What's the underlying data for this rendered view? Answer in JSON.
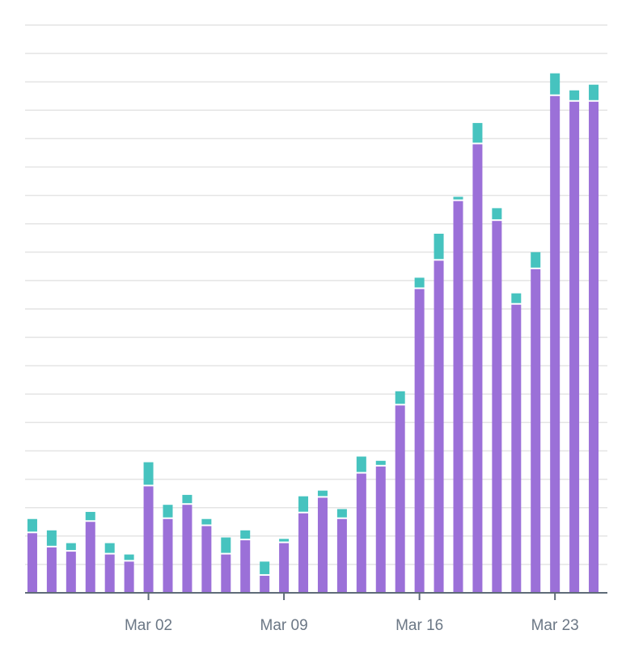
{
  "chart_data": {
    "type": "stacked_bar",
    "categories": [
      null,
      null,
      null,
      null,
      null,
      null,
      "Mar 02",
      null,
      null,
      null,
      null,
      null,
      null,
      "Mar 09",
      null,
      null,
      null,
      null,
      null,
      null,
      "Mar 16",
      null,
      null,
      null,
      null,
      null,
      null,
      "Mar 23",
      null,
      null
    ],
    "series": [
      {
        "color": "#9b70d8",
        "values": [
          2.1,
          1.6,
          1.45,
          2.5,
          1.35,
          1.1,
          3.75,
          2.6,
          3.1,
          2.35,
          1.35,
          1.85,
          0.6,
          1.75,
          2.8,
          3.35,
          2.6,
          4.2,
          4.45,
          6.6,
          10.7,
          11.7,
          13.8,
          15.8,
          13.1,
          10.15,
          11.4,
          17.5,
          17.3,
          17.3
        ]
      },
      {
        "color": "#46c3bf",
        "values": [
          0.5,
          0.6,
          0.3,
          0.35,
          0.4,
          0.25,
          0.85,
          0.5,
          0.35,
          0.25,
          0.6,
          0.35,
          0.5,
          0.15,
          0.6,
          0.25,
          0.35,
          0.6,
          0.2,
          0.5,
          0.4,
          0.95,
          0.15,
          0.75,
          0.45,
          0.4,
          0.6,
          0.8,
          0.4,
          0.6
        ]
      }
    ],
    "ylim": [
      0,
      20
    ],
    "yticks": [
      0,
      1,
      2,
      3,
      4,
      5,
      6,
      7,
      8,
      9,
      10,
      11,
      12,
      13,
      14,
      15,
      16,
      17,
      18,
      19,
      20
    ],
    "grid": true
  }
}
